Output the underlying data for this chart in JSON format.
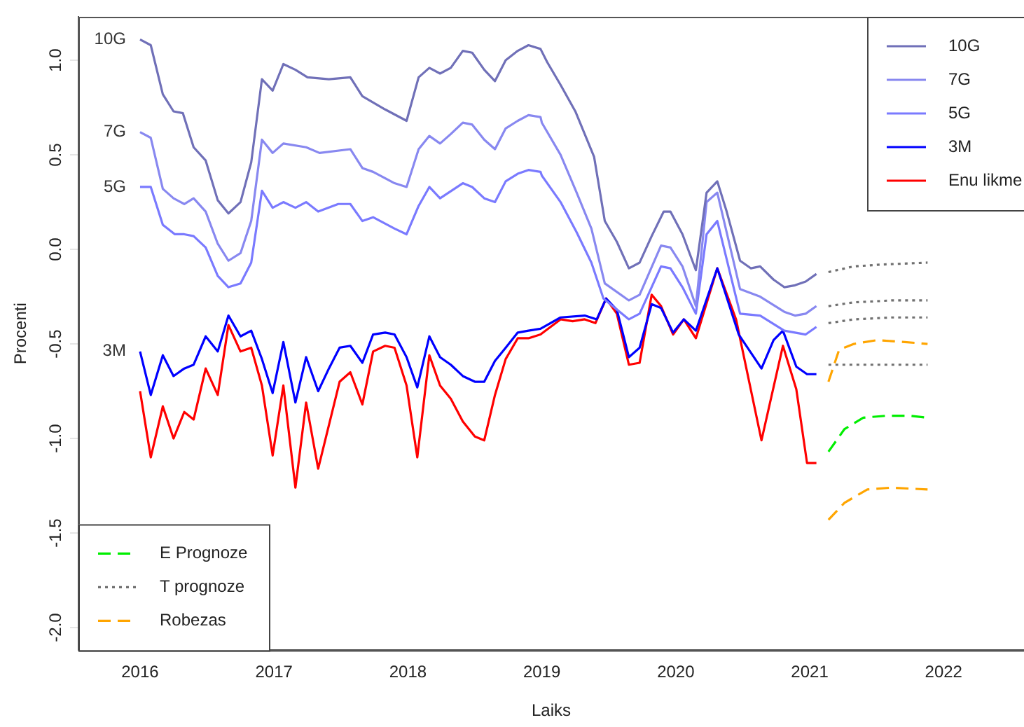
{
  "chart_data": {
    "type": "line",
    "xlabel": "Laiks",
    "ylabel": "Procenti",
    "xlim": [
      2015.54,
      2022.6
    ],
    "ylim": [
      -2.12,
      1.23
    ],
    "xticks": [
      2016,
      2017,
      2018,
      2019,
      2020,
      2021,
      2022
    ],
    "yticks": [
      {
        "value": -2,
        "label": "-2.0"
      },
      -1.5,
      {
        "value": -1,
        "label": "-1.0"
      },
      -0.5,
      {
        "value": 0,
        "label": "0.0"
      },
      0.5,
      {
        "value": 1,
        "label": "1.0"
      }
    ],
    "grid": false,
    "legend": "top right",
    "marker": "none",
    "line_style": "solid",
    "annotations": [
      "10G",
      "7G",
      "5G",
      "3M"
    ],
    "series": [
      {
        "name": "10G",
        "color": "#7070b8",
        "x": [
          2016.0,
          2016.08,
          2016.17,
          2016.25,
          2016.32,
          2016.4,
          2016.49,
          2016.58,
          2016.66,
          2016.75,
          2016.83,
          2016.91,
          2016.99,
          2017.07,
          2017.16,
          2017.25,
          2017.41,
          2017.57,
          2017.66,
          2017.83,
          2017.99,
          2018.08,
          2018.16,
          2018.24,
          2018.32,
          2018.41,
          2018.48,
          2018.57,
          2018.65,
          2018.73,
          2018.82,
          2018.9,
          2018.99,
          2019.04,
          2019.14,
          2019.25,
          2019.39,
          2019.47,
          2019.56,
          2019.65,
          2019.73,
          2019.82,
          2019.91,
          2019.96,
          2020.05,
          2020.15,
          2020.23,
          2020.31,
          2020.38,
          2020.48,
          2020.56,
          2020.63,
          2020.73,
          2020.81,
          2020.89,
          2020.97,
          2021.05
        ],
        "values": [
          1.11,
          1.08,
          0.82,
          0.73,
          0.72,
          0.54,
          0.47,
          0.26,
          0.19,
          0.25,
          0.46,
          0.9,
          0.84,
          0.98,
          0.95,
          0.91,
          0.9,
          0.91,
          0.81,
          0.74,
          0.68,
          0.91,
          0.96,
          0.93,
          0.96,
          1.05,
          1.04,
          0.95,
          0.89,
          1.0,
          1.05,
          1.08,
          1.06,
          0.99,
          0.87,
          0.73,
          0.49,
          0.15,
          0.04,
          -0.1,
          -0.07,
          0.07,
          0.2,
          0.2,
          0.08,
          -0.11,
          0.3,
          0.36,
          0.2,
          -0.06,
          -0.1,
          -0.09,
          -0.16,
          -0.2,
          -0.19,
          -0.17,
          -0.13
        ]
      },
      {
        "name": "7G",
        "color": "#8888f0",
        "x": [
          2016.0,
          2016.08,
          2016.17,
          2016.25,
          2016.33,
          2016.4,
          2016.49,
          2016.58,
          2016.66,
          2016.75,
          2016.83,
          2016.91,
          2016.99,
          2017.07,
          2017.24,
          2017.34,
          2017.57,
          2017.66,
          2017.74,
          2017.9,
          2017.99,
          2018.08,
          2018.16,
          2018.24,
          2018.32,
          2018.41,
          2018.48,
          2018.57,
          2018.65,
          2018.73,
          2018.82,
          2018.9,
          2018.99,
          2019.0,
          2019.14,
          2019.26,
          2019.37,
          2019.47,
          2019.65,
          2019.73,
          2019.89,
          2019.96,
          2020.05,
          2020.15,
          2020.23,
          2020.31,
          2020.48,
          2020.63,
          2020.81,
          2020.89,
          2020.97,
          2021.05
        ],
        "values": [
          0.62,
          0.59,
          0.32,
          0.27,
          0.24,
          0.27,
          0.2,
          0.03,
          -0.06,
          -0.02,
          0.15,
          0.58,
          0.51,
          0.56,
          0.54,
          0.51,
          0.53,
          0.43,
          0.41,
          0.35,
          0.33,
          0.53,
          0.6,
          0.56,
          0.61,
          0.67,
          0.66,
          0.58,
          0.53,
          0.64,
          0.68,
          0.71,
          0.7,
          0.67,
          0.5,
          0.3,
          0.11,
          -0.18,
          -0.27,
          -0.24,
          0.02,
          0.01,
          -0.09,
          -0.3,
          0.25,
          0.3,
          -0.21,
          -0.25,
          -0.33,
          -0.35,
          -0.34,
          -0.3
        ]
      },
      {
        "name": "5G",
        "color": "#7a7aff",
        "x": [
          2016.0,
          2016.08,
          2016.17,
          2016.26,
          2016.33,
          2016.4,
          2016.49,
          2016.58,
          2016.66,
          2016.75,
          2016.83,
          2016.91,
          2016.99,
          2017.07,
          2017.16,
          2017.24,
          2017.33,
          2017.48,
          2017.57,
          2017.66,
          2017.74,
          2017.9,
          2017.99,
          2018.08,
          2018.16,
          2018.24,
          2018.41,
          2018.48,
          2018.57,
          2018.65,
          2018.73,
          2018.82,
          2018.9,
          2018.99,
          2019.0,
          2019.14,
          2019.26,
          2019.37,
          2019.46,
          2019.65,
          2019.73,
          2019.89,
          2019.96,
          2020.05,
          2020.15,
          2020.23,
          2020.31,
          2020.48,
          2020.63,
          2020.81,
          2020.97,
          2021.05
        ],
        "values": [
          0.33,
          0.33,
          0.13,
          0.08,
          0.08,
          0.07,
          0.01,
          -0.14,
          -0.2,
          -0.18,
          -0.07,
          0.31,
          0.22,
          0.25,
          0.22,
          0.25,
          0.2,
          0.24,
          0.24,
          0.15,
          0.17,
          0.11,
          0.08,
          0.23,
          0.33,
          0.27,
          0.35,
          0.33,
          0.27,
          0.25,
          0.36,
          0.4,
          0.42,
          0.41,
          0.39,
          0.25,
          0.09,
          -0.07,
          -0.26,
          -0.37,
          -0.34,
          -0.09,
          -0.1,
          -0.2,
          -0.34,
          0.08,
          0.15,
          -0.34,
          -0.35,
          -0.43,
          -0.45,
          -0.41
        ]
      },
      {
        "name": "3M",
        "color": "#0000ff",
        "x": [
          2016.0,
          2016.08,
          2016.17,
          2016.25,
          2016.33,
          2016.4,
          2016.49,
          2016.58,
          2016.66,
          2016.75,
          2016.83,
          2016.91,
          2016.99,
          2017.07,
          2017.16,
          2017.24,
          2017.33,
          2017.41,
          2017.49,
          2017.57,
          2017.66,
          2017.74,
          2017.83,
          2017.9,
          2017.99,
          2018.07,
          2018.16,
          2018.24,
          2018.32,
          2018.41,
          2018.5,
          2018.57,
          2018.65,
          2018.73,
          2018.82,
          2018.9,
          2018.99,
          2019.14,
          2019.32,
          2019.41,
          2019.48,
          2019.56,
          2019.65,
          2019.73,
          2019.82,
          2019.89,
          2019.98,
          2020.06,
          2020.15,
          2020.31,
          2020.47,
          2020.64,
          2020.73,
          2020.8,
          2020.9,
          2020.98,
          2021.05
        ],
        "values": [
          -0.54,
          -0.77,
          -0.56,
          -0.67,
          -0.63,
          -0.61,
          -0.46,
          -0.54,
          -0.35,
          -0.46,
          -0.43,
          -0.58,
          -0.76,
          -0.49,
          -0.81,
          -0.57,
          -0.75,
          -0.63,
          -0.52,
          -0.51,
          -0.6,
          -0.45,
          -0.44,
          -0.45,
          -0.57,
          -0.73,
          -0.46,
          -0.57,
          -0.61,
          -0.67,
          -0.7,
          -0.7,
          -0.59,
          -0.52,
          -0.44,
          -0.43,
          -0.42,
          -0.36,
          -0.35,
          -0.37,
          -0.26,
          -0.32,
          -0.57,
          -0.52,
          -0.29,
          -0.31,
          -0.44,
          -0.37,
          -0.43,
          -0.1,
          -0.45,
          -0.63,
          -0.48,
          -0.43,
          -0.62,
          -0.66,
          -0.66
        ]
      },
      {
        "name": "Enu likme",
        "color": "#ff0000",
        "x": [
          2016.0,
          2016.08,
          2016.17,
          2016.25,
          2016.33,
          2016.4,
          2016.49,
          2016.58,
          2016.66,
          2016.75,
          2016.83,
          2016.91,
          2016.99,
          2017.07,
          2017.16,
          2017.24,
          2017.33,
          2017.49,
          2017.57,
          2017.66,
          2017.74,
          2017.83,
          2017.9,
          2017.99,
          2018.07,
          2018.16,
          2018.24,
          2018.32,
          2018.41,
          2018.5,
          2018.57,
          2018.65,
          2018.73,
          2018.82,
          2018.9,
          2018.99,
          2019.14,
          2019.23,
          2019.32,
          2019.4,
          2019.48,
          2019.56,
          2019.65,
          2019.73,
          2019.82,
          2019.89,
          2019.98,
          2020.06,
          2020.15,
          2020.31,
          2020.45,
          2020.64,
          2020.8,
          2020.9,
          2020.98,
          2021.05
        ],
        "values": [
          -0.75,
          -1.1,
          -0.83,
          -1.0,
          -0.86,
          -0.9,
          -0.63,
          -0.77,
          -0.4,
          -0.54,
          -0.52,
          -0.72,
          -1.09,
          -0.72,
          -1.26,
          -0.81,
          -1.16,
          -0.7,
          -0.65,
          -0.82,
          -0.54,
          -0.51,
          -0.52,
          -0.72,
          -1.1,
          -0.56,
          -0.72,
          -0.79,
          -0.91,
          -0.99,
          -1.01,
          -0.77,
          -0.58,
          -0.47,
          -0.47,
          -0.45,
          -0.37,
          -0.38,
          -0.37,
          -0.39,
          -0.26,
          -0.34,
          -0.61,
          -0.6,
          -0.24,
          -0.3,
          -0.45,
          -0.37,
          -0.47,
          -0.1,
          -0.37,
          -1.01,
          -0.51,
          -0.74,
          -1.13,
          -1.13
        ]
      },
      {
        "name": "E Prognoze",
        "color": "#00ee00",
        "line_style": "dashed",
        "x": [
          2021.14,
          2021.26,
          2021.4,
          2021.57,
          2021.75,
          2021.88
        ],
        "values": [
          -1.07,
          -0.95,
          -0.89,
          -0.88,
          -0.88,
          -0.89
        ]
      },
      {
        "name": "T prognoze",
        "color": "#707070",
        "line_style": "dotted",
        "x": [
          2021.14,
          2021.33,
          2021.54,
          2021.88
        ],
        "values": [
          -0.12,
          -0.09,
          -0.08,
          -0.07
        ]
      },
      {
        "color": "#707070",
        "line_style": "dotted",
        "x": [
          2021.14,
          2021.33,
          2021.61,
          2021.88
        ],
        "values": [
          -0.3,
          -0.28,
          -0.27,
          -0.27
        ]
      },
      {
        "color": "#707070",
        "line_style": "dotted",
        "x": [
          2021.14,
          2021.33,
          2021.61,
          2021.88
        ],
        "values": [
          -0.39,
          -0.37,
          -0.36,
          -0.36
        ]
      },
      {
        "color": "#707070",
        "line_style": "dotted",
        "x": [
          2021.14,
          2021.88
        ],
        "values": [
          -0.61,
          -0.61
        ]
      },
      {
        "name": "Robezas",
        "color": "#ffa500",
        "line_style": "dashed",
        "x": [
          2021.14,
          2021.22,
          2021.33,
          2021.5,
          2021.71,
          2021.88
        ],
        "values": [
          -0.7,
          -0.53,
          -0.5,
          -0.48,
          -0.49,
          -0.5
        ]
      },
      {
        "color": "#ffa500",
        "line_style": "dashed",
        "x": [
          2021.14,
          2021.26,
          2021.43,
          2021.61,
          2021.88
        ],
        "values": [
          -1.43,
          -1.34,
          -1.27,
          -1.26,
          -1.27
        ]
      }
    ]
  }
}
